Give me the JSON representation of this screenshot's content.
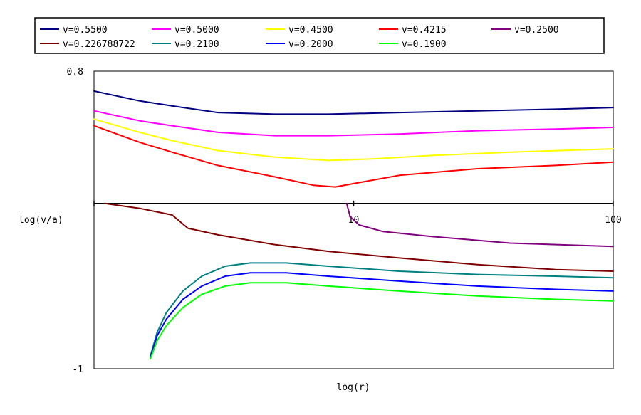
{
  "chart_data": {
    "type": "line",
    "title": "",
    "xlabel": "log(r)",
    "ylabel": "log(v/a)",
    "x_scale": "log",
    "xlim": [
      1,
      100
    ],
    "ylim": [
      -1,
      0.8
    ],
    "x_axis_crossing_y": 0,
    "grid": false,
    "legend_position": "top",
    "y_ticks": [
      {
        "value": 0.8,
        "label": "0.8"
      },
      {
        "value": -1,
        "label": "-1"
      }
    ],
    "x_ticks": [
      {
        "value": 1,
        "label": ""
      },
      {
        "value": 10,
        "label": "10"
      },
      {
        "value": 100,
        "label": "100"
      }
    ],
    "series": [
      {
        "name": "v=0.5500",
        "color": "#000080",
        "x": [
          1,
          1.5,
          2,
          3,
          5,
          8,
          15,
          30,
          60,
          100
        ],
        "y": [
          0.68,
          0.62,
          0.59,
          0.55,
          0.54,
          0.54,
          0.55,
          0.56,
          0.57,
          0.58
        ]
      },
      {
        "name": "v=0.5000",
        "color": "#ff00ff",
        "x": [
          1,
          1.5,
          2,
          3,
          5,
          8,
          15,
          30,
          60,
          100
        ],
        "y": [
          0.56,
          0.5,
          0.47,
          0.43,
          0.41,
          0.41,
          0.42,
          0.44,
          0.45,
          0.46
        ]
      },
      {
        "name": "v=0.4500",
        "color": "#ffff00",
        "x": [
          1,
          1.5,
          2,
          3,
          5,
          8,
          12,
          20,
          40,
          100
        ],
        "y": [
          0.51,
          0.43,
          0.38,
          0.32,
          0.28,
          0.26,
          0.27,
          0.29,
          0.31,
          0.33
        ]
      },
      {
        "name": "v=0.4215",
        "color": "#ff0000",
        "x": [
          1,
          1.5,
          2,
          3,
          5,
          7,
          8.5,
          10,
          15,
          30,
          60,
          100
        ],
        "y": [
          0.47,
          0.37,
          0.31,
          0.23,
          0.16,
          0.11,
          0.1,
          0.12,
          0.17,
          0.21,
          0.23,
          0.25
        ]
      },
      {
        "name": "v=0.2500",
        "color": "#800080",
        "x": [
          9.4,
          9.7,
          10.5,
          13,
          20,
          40,
          100
        ],
        "y": [
          0,
          -0.08,
          -0.13,
          -0.17,
          -0.2,
          -0.24,
          -0.26
        ]
      },
      {
        "name": "v=0.226788722",
        "color": "#800000",
        "x": [
          1.1,
          1.5,
          2,
          2.3,
          3,
          5,
          8,
          15,
          30,
          60,
          100
        ],
        "y": [
          0,
          -0.03,
          -0.07,
          -0.15,
          -0.19,
          -0.25,
          -0.29,
          -0.33,
          -0.37,
          -0.4,
          -0.41
        ]
      },
      {
        "name": "v=0.2100",
        "color": "#008080",
        "x": [
          1.65,
          1.75,
          1.9,
          2.2,
          2.6,
          3.2,
          4,
          5.5,
          8,
          15,
          30,
          60,
          100
        ],
        "y": [
          -0.92,
          -0.78,
          -0.66,
          -0.53,
          -0.44,
          -0.38,
          -0.36,
          -0.36,
          -0.38,
          -0.41,
          -0.43,
          -0.44,
          -0.45
        ]
      },
      {
        "name": "v=0.2000",
        "color": "#0000ff",
        "x": [
          1.65,
          1.75,
          1.9,
          2.2,
          2.6,
          3.2,
          4,
          5.5,
          8,
          15,
          30,
          60,
          100
        ],
        "y": [
          -0.93,
          -0.8,
          -0.7,
          -0.58,
          -0.5,
          -0.44,
          -0.42,
          -0.42,
          -0.44,
          -0.47,
          -0.5,
          -0.52,
          -0.53
        ]
      },
      {
        "name": "v=0.1900",
        "color": "#00ff00",
        "x": [
          1.65,
          1.75,
          1.9,
          2.2,
          2.6,
          3.2,
          4,
          5.5,
          8,
          15,
          30,
          60,
          100
        ],
        "y": [
          -0.94,
          -0.83,
          -0.74,
          -0.63,
          -0.55,
          -0.5,
          -0.48,
          -0.48,
          -0.5,
          -0.53,
          -0.56,
          -0.58,
          -0.59
        ]
      }
    ]
  }
}
